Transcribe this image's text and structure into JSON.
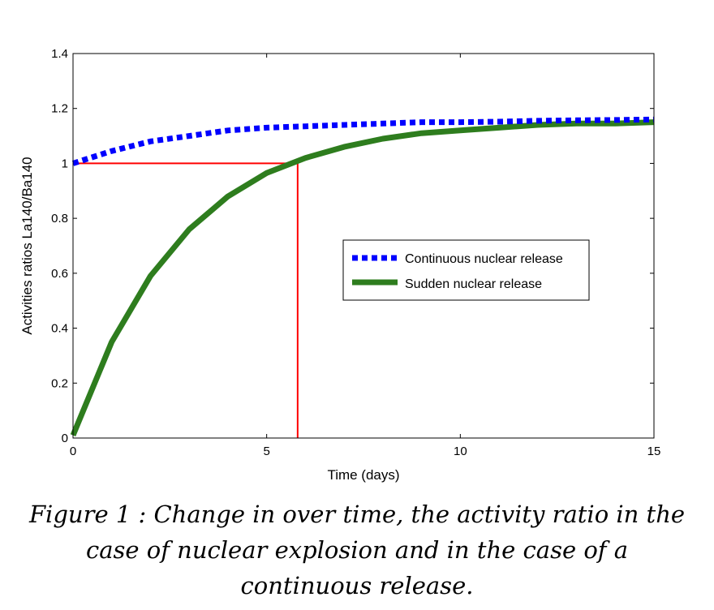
{
  "chart_data": {
    "type": "line",
    "title": "",
    "xlabel": "Time (days)",
    "ylabel": "Activities ratios La140/Ba140",
    "xlim": [
      0,
      15
    ],
    "ylim": [
      0,
      1.4
    ],
    "xticks": [
      0,
      5,
      10,
      15
    ],
    "yticks": [
      0,
      0.2,
      0.4,
      0.6,
      0.8,
      1,
      1.2,
      1.4
    ],
    "x_tick_labels": [
      "0",
      "5",
      "10",
      "15"
    ],
    "y_tick_labels": [
      "0",
      "0.2",
      "0.4",
      "0.6",
      "0.8",
      "1",
      "1.2",
      "1.4"
    ],
    "grid": false,
    "legend_position": "center-right",
    "series": [
      {
        "name": "Continuous nuclear release",
        "color": "#0000ff",
        "style": "dotted",
        "x": [
          0,
          1,
          2,
          3,
          4,
          5,
          6,
          7,
          8,
          9,
          10,
          11,
          12,
          13,
          14,
          15
        ],
        "values": [
          1.0,
          1.045,
          1.08,
          1.1,
          1.12,
          1.13,
          1.135,
          1.14,
          1.145,
          1.15,
          1.15,
          1.152,
          1.155,
          1.157,
          1.158,
          1.16
        ]
      },
      {
        "name": "Sudden nuclear release",
        "color": "#2e7d1e",
        "style": "solid",
        "x": [
          0,
          1,
          2,
          3,
          4,
          5,
          6,
          7,
          8,
          9,
          10,
          11,
          12,
          13,
          14,
          15
        ],
        "values": [
          0.01,
          0.35,
          0.59,
          0.76,
          0.88,
          0.965,
          1.02,
          1.06,
          1.09,
          1.11,
          1.12,
          1.13,
          1.14,
          1.145,
          1.145,
          1.15
        ]
      }
    ],
    "annotations": [
      {
        "type": "reference-lines",
        "color": "#ff0000",
        "x": 5.8,
        "y": 1.0,
        "description": "horizontal line at ratio 1 from x=0 to x=5.8 and vertical line at x=5.8 from 0 to 1"
      }
    ]
  },
  "caption": {
    "line1": "Figure 1 : Change in over time, the activity ratio in the",
    "line2": "case of nuclear explosion and in the case of a",
    "line3": "continuous release."
  }
}
